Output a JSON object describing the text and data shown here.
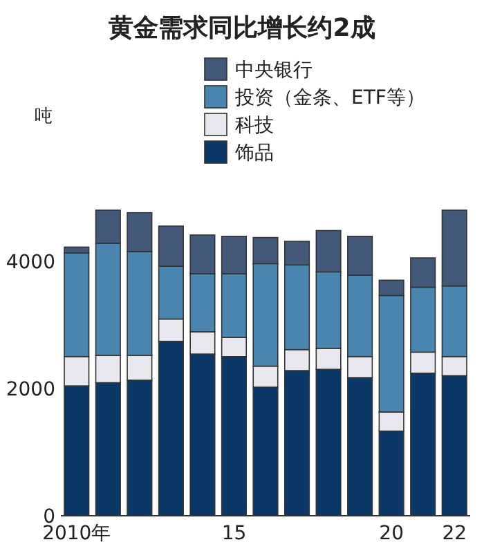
{
  "chart_data": {
    "type": "bar",
    "stacked": true,
    "title": "黄金需求同比增长约2成",
    "ylabel": "吨",
    "categories": [
      "2010年",
      null,
      null,
      null,
      null,
      "15",
      null,
      null,
      null,
      null,
      "20",
      null,
      "22"
    ],
    "ylim": [
      0,
      4800
    ],
    "yticks": [
      0,
      2000,
      4000
    ],
    "legend": "top right",
    "grid": false,
    "series": [
      {
        "name": "饰品",
        "color": "#0b3866",
        "values": [
          2040,
          2090,
          2130,
          2740,
          2540,
          2500,
          2020,
          2280,
          2300,
          2170,
          1330,
          2240,
          2200
        ]
      },
      {
        "name": "科技",
        "color": "#e8e8ee",
        "values": [
          460,
          430,
          390,
          350,
          350,
          300,
          330,
          330,
          330,
          330,
          300,
          330,
          300
        ]
      },
      {
        "name": "投资（金条、ETF等）",
        "color": "#4a86b0",
        "values": [
          1630,
          1760,
          1630,
          830,
          910,
          1000,
          1610,
          1330,
          1200,
          1280,
          1830,
          1020,
          1110
        ]
      },
      {
        "name": "中央银行",
        "color": "#44587a",
        "values": [
          90,
          520,
          610,
          630,
          610,
          590,
          410,
          370,
          650,
          610,
          240,
          460,
          1190
        ]
      }
    ]
  }
}
